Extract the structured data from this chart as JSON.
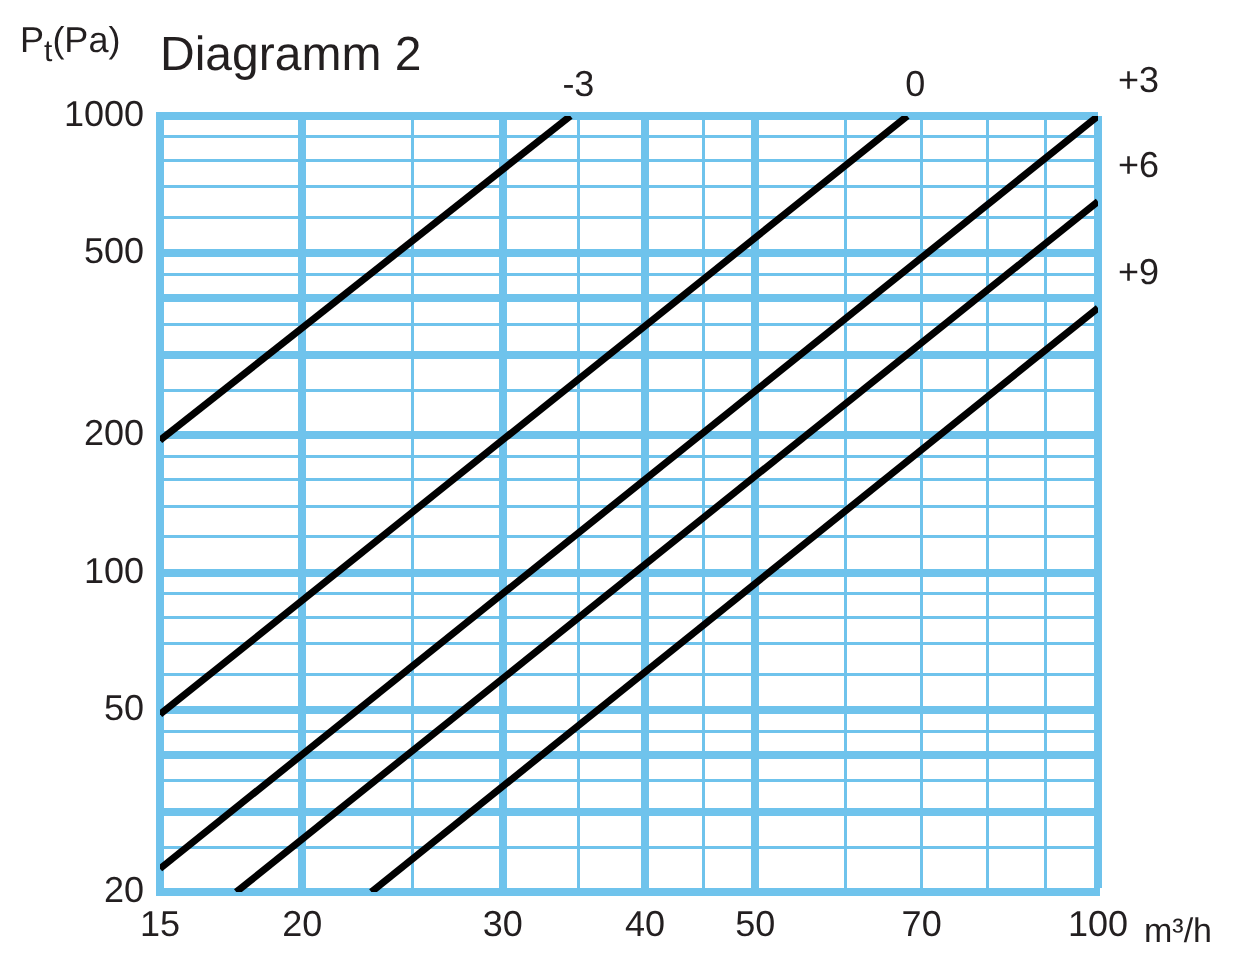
{
  "chart_data": {
    "type": "line",
    "title": "Diagramm 2",
    "xlabel": "m³/h",
    "ylabel": "P$_{t}$(Pa)",
    "log": "xy",
    "grid": true,
    "legend": false,
    "marker": "none",
    "line_style": "solid",
    "xlim": [
      15,
      100
    ],
    "xticks": [
      15,
      20,
      {
        "value": 25,
        "label": null
      },
      30,
      {
        "value": 35,
        "label": null
      },
      40,
      {
        "value": 45,
        "label": null
      },
      50,
      {
        "value": 60,
        "label": null
      },
      70,
      {
        "value": 80,
        "label": null
      },
      {
        "value": 90,
        "label": null
      },
      100
    ],
    "ylim": [
      20,
      1000
    ],
    "yticks": [
      20,
      {
        "value": 25,
        "label": null
      },
      {
        "value": 30,
        "label": null
      },
      {
        "value": 35,
        "label": null
      },
      {
        "value": 40,
        "label": null
      },
      {
        "value": 45,
        "label": null
      },
      50,
      {
        "value": 60,
        "label": null
      },
      {
        "value": 70,
        "label": null
      },
      {
        "value": 80,
        "label": null
      },
      {
        "value": 90,
        "label": null
      },
      100,
      {
        "value": 120,
        "label": null
      },
      {
        "value": 140,
        "label": null
      },
      {
        "value": 160,
        "label": null
      },
      {
        "value": 180,
        "label": null
      },
      200,
      {
        "value": 250,
        "label": null
      },
      {
        "value": 300,
        "label": null
      },
      {
        "value": 350,
        "label": null
      },
      {
        "value": 400,
        "label": null
      },
      {
        "value": 450,
        "label": null
      },
      500,
      {
        "value": 600,
        "label": null
      },
      {
        "value": 700,
        "label": null
      },
      {
        "value": 800,
        "label": null
      },
      {
        "value": 900,
        "label": null
      },
      1000
    ],
    "series": [
      {
        "name": "-3",
        "color": "#000000",
        "x": [
          15,
          34.4
        ],
        "values": [
          195,
          1000
        ]
      },
      {
        "name": "0",
        "color": "#000000",
        "x": [
          15,
          68
        ],
        "values": [
          49,
          1000
        ]
      },
      {
        "name": "+3",
        "color": "#000000",
        "x": [
          15,
          100
        ],
        "values": [
          22.5,
          1000
        ]
      },
      {
        "name": "+6",
        "color": "#000000",
        "x": [
          17.5,
          100
        ],
        "values": [
          20,
          650
        ]
      },
      {
        "name": "+9",
        "color": "#000000",
        "x": [
          23,
          100
        ],
        "values": [
          20,
          380
        ]
      }
    ]
  }
}
